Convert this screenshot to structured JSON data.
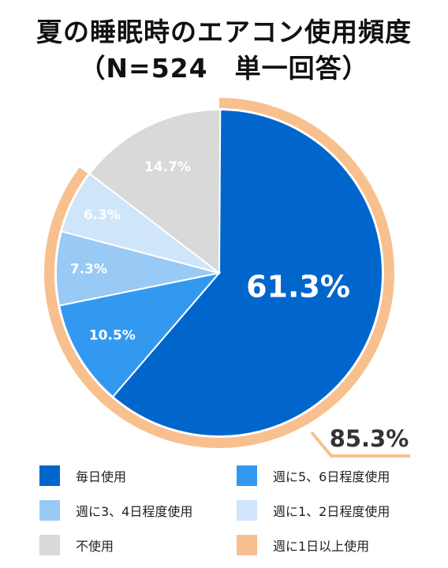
{
  "title": {
    "line1": "夏の睡眠時のエアコン使用頻度",
    "line2": "（N=524　単一回答）"
  },
  "chart_data": {
    "type": "pie",
    "title": "夏の睡眠時のエアコン使用頻度",
    "subtitle": "（N=524　単一回答）",
    "slices": [
      {
        "label": "毎日使用",
        "value": 61.3,
        "display": "61.3%",
        "color": "#0066cc"
      },
      {
        "label": "週に5、6日程度使用",
        "value": 10.5,
        "display": "10.5%",
        "color": "#3399f0"
      },
      {
        "label": "週に3、4日程度使用",
        "value": 7.3,
        "display": "7.3%",
        "color": "#99c9f5"
      },
      {
        "label": "週に1、2日程度使用",
        "value": 6.3,
        "display": "6.3%",
        "color": "#cfe5fa"
      },
      {
        "label": "不使用",
        "value": 14.7,
        "display": "14.7%",
        "color": "#d9d9d9"
      }
    ],
    "highlight_arc": {
      "label": "週に1日以上使用",
      "value": 85.3,
      "display": "85.3%",
      "color": "#f8c08f"
    },
    "legend_placement": "bottom",
    "legend": [
      {
        "label": "毎日使用",
        "color": "#0066cc"
      },
      {
        "label": "週に5、6日程度使用",
        "color": "#3399f0"
      },
      {
        "label": "週に3、4日程度使用",
        "color": "#99c9f5"
      },
      {
        "label": "週に1、2日程度使用",
        "color": "#cfe5fa"
      },
      {
        "label": "不使用",
        "color": "#d9d9d9"
      },
      {
        "label": "週に1日以上使用",
        "color": "#f8c08f"
      }
    ]
  }
}
